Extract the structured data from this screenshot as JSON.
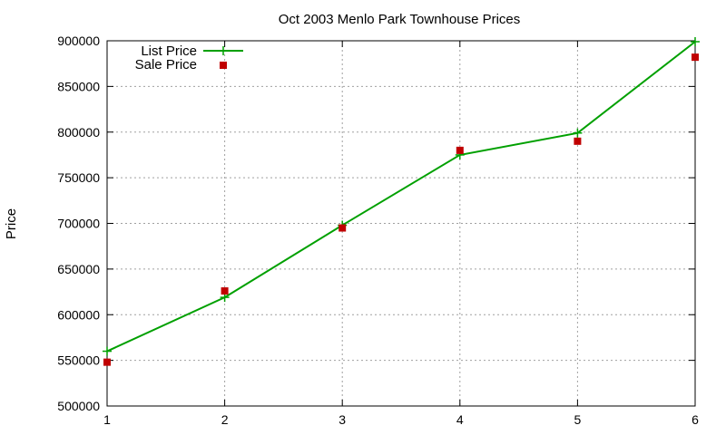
{
  "chart_data": {
    "type": "line",
    "title": "Oct 2003 Menlo Park Townhouse Prices",
    "xlabel": "",
    "ylabel": "Price",
    "x": [
      1,
      2,
      3,
      4,
      5,
      6
    ],
    "xlim": [
      1,
      6
    ],
    "ylim": [
      500000,
      900000
    ],
    "xticks": [
      "1",
      "2",
      "3",
      "4",
      "5",
      "6"
    ],
    "yticks": [
      "500000",
      "550000",
      "600000",
      "650000",
      "700000",
      "750000",
      "800000",
      "850000",
      "900000"
    ],
    "grid": true,
    "legend_position": "top-left",
    "series": [
      {
        "name": "List Price",
        "style": "line-with-plus-markers",
        "color": "#00a000",
        "values": [
          560000,
          619000,
          698000,
          775000,
          799000,
          899000
        ]
      },
      {
        "name": "Sale Price",
        "style": "square-markers",
        "color": "#c00000",
        "values": [
          548000,
          626000,
          695000,
          780000,
          790000,
          882000
        ]
      }
    ]
  }
}
